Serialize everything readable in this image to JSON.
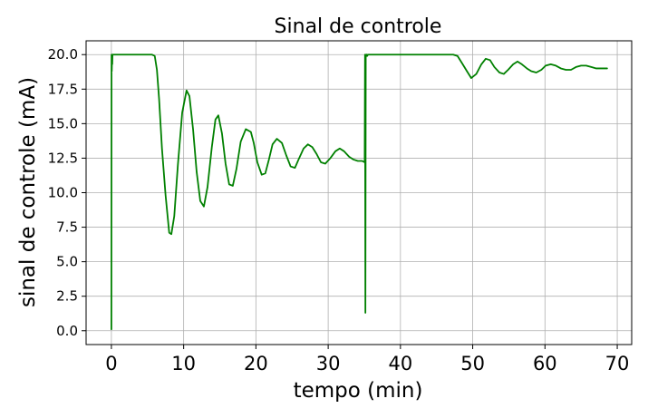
{
  "chart_data": {
    "type": "line",
    "title": "Sinal de controle",
    "xlabel": "tempo (min)",
    "ylabel": "sinal de controle (mA)",
    "xlim": [
      -3.5,
      72
    ],
    "ylim": [
      -1.0,
      21.0
    ],
    "xticks": [
      0,
      10,
      20,
      30,
      40,
      50,
      60,
      70
    ],
    "yticks": [
      0.0,
      2.5,
      5.0,
      7.5,
      10.0,
      12.5,
      15.0,
      17.5,
      20.0
    ],
    "xtick_labels": [
      "0",
      "10",
      "20",
      "30",
      "40",
      "50",
      "60",
      "70"
    ],
    "ytick_labels": [
      "0.0",
      "2.5",
      "5.0",
      "7.5",
      "10.0",
      "12.5",
      "15.0",
      "17.5",
      "20.0"
    ],
    "grid": true,
    "series": [
      {
        "color": "#008000",
        "x": [
          0,
          0.02,
          0.05,
          0.1,
          0.12,
          0.15,
          0.3,
          1,
          2,
          3,
          4,
          5,
          5.6,
          6.0,
          6.3,
          6.6,
          7.0,
          7.5,
          8.0,
          8.3,
          8.7,
          9.2,
          9.8,
          10.4,
          10.8,
          11.3,
          11.8,
          12.3,
          12.8,
          13.3,
          13.9,
          14.4,
          14.8,
          15.3,
          15.8,
          16.3,
          16.8,
          17.3,
          17.9,
          18.6,
          19.3,
          19.7,
          20.2,
          20.8,
          21.3,
          21.8,
          22.3,
          22.9,
          23.6,
          24.2,
          24.8,
          25.4,
          25.9,
          26.6,
          27.2,
          27.8,
          28.4,
          29.0,
          29.6,
          30.3,
          31.0,
          31.6,
          32.2,
          32.9,
          33.5,
          34.1,
          34.7,
          35.05,
          35.1,
          35.15,
          35.2,
          35.3,
          35.35,
          35.4,
          35.5,
          36,
          38,
          40,
          42,
          44,
          46,
          47.3,
          47.9,
          48.5,
          49.2,
          49.8,
          50.5,
          51.2,
          51.8,
          52.4,
          53.0,
          53.7,
          54.3,
          54.9,
          55.6,
          56.2,
          56.8,
          57.5,
          58.1,
          58.8,
          59.5,
          60.1,
          60.8,
          61.5,
          62.2,
          62.9,
          63.6,
          64.3,
          65.0,
          65.7,
          66.4,
          67.1,
          67.8,
          68.6
        ],
        "y": [
          0.1,
          20.0,
          18.8,
          20.0,
          19.3,
          20.0,
          20.0,
          20.0,
          20.0,
          20.0,
          20.0,
          20.0,
          20.0,
          19.9,
          18.9,
          16.8,
          13.2,
          9.8,
          7.1,
          7.0,
          8.3,
          12.0,
          15.8,
          17.4,
          17.0,
          14.6,
          11.5,
          9.4,
          9.0,
          10.4,
          13.3,
          15.3,
          15.6,
          14.3,
          12.1,
          10.6,
          10.5,
          11.7,
          13.7,
          14.6,
          14.4,
          13.6,
          12.2,
          11.3,
          11.4,
          12.4,
          13.5,
          13.9,
          13.6,
          12.7,
          11.9,
          11.8,
          12.4,
          13.2,
          13.5,
          13.3,
          12.8,
          12.2,
          12.1,
          12.5,
          13.0,
          13.2,
          13.0,
          12.6,
          12.4,
          12.3,
          12.3,
          12.2,
          20.0,
          1.3,
          20.0,
          19.9,
          20.0,
          19.9,
          20.0,
          20.0,
          20.0,
          20.0,
          20.0,
          20.0,
          20.0,
          20.0,
          19.9,
          19.4,
          18.8,
          18.3,
          18.6,
          19.3,
          19.7,
          19.6,
          19.1,
          18.7,
          18.6,
          18.9,
          19.3,
          19.5,
          19.3,
          19.0,
          18.8,
          18.7,
          18.9,
          19.2,
          19.3,
          19.2,
          19.0,
          18.9,
          18.9,
          19.1,
          19.2,
          19.2,
          19.1,
          19.0,
          19.0,
          19.0
        ]
      }
    ]
  }
}
